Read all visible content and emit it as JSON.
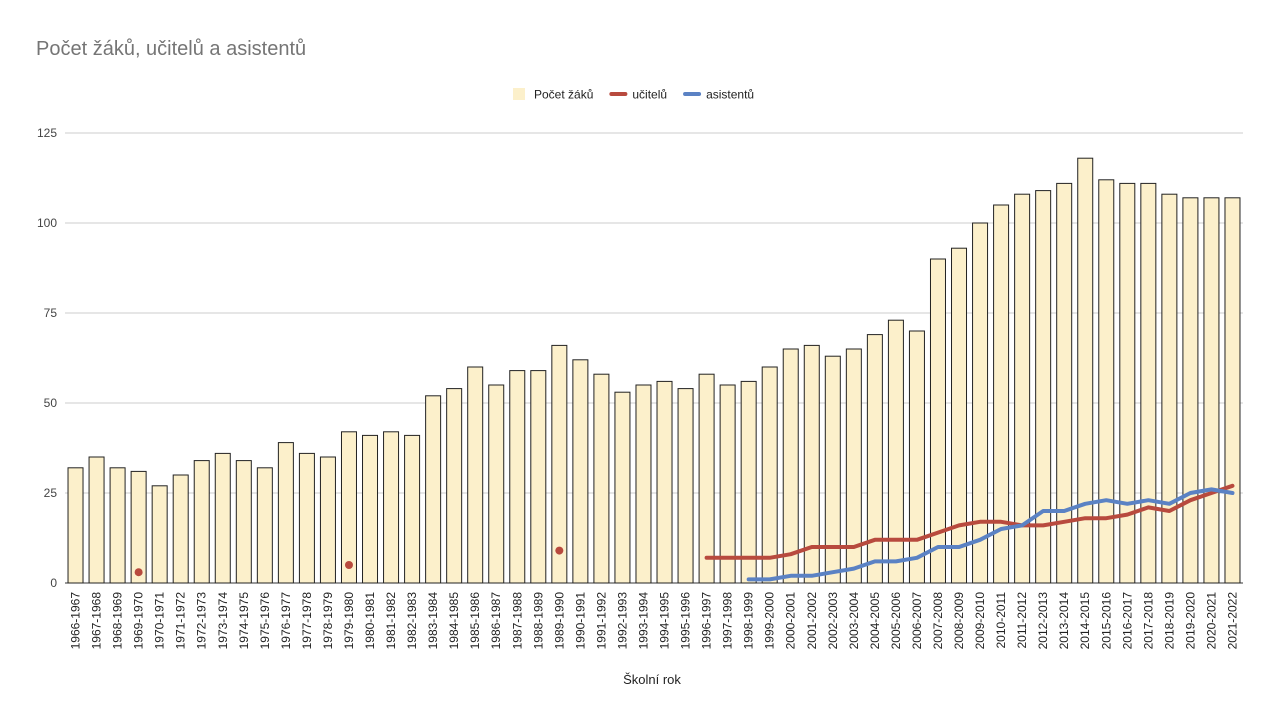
{
  "chart_data": {
    "type": "bar",
    "title": "Počet žáků, učitelů a asistentů",
    "xlabel": "Školní rok",
    "ylabel": "",
    "ylim": [
      0,
      125
    ],
    "yticks": [
      0,
      25,
      50,
      75,
      100,
      125
    ],
    "grid": true,
    "legend_position": "top",
    "categories": [
      "1966-1967",
      "1967-1968",
      "1968-1969",
      "1969-1970",
      "1970-1971",
      "1971-1972",
      "1972-1973",
      "1973-1974",
      "1974-1975",
      "1975-1976",
      "1976-1977",
      "1977-1978",
      "1978-1979",
      "1979-1980",
      "1980-1981",
      "1981-1982",
      "1982-1983",
      "1983-1984",
      "1984-1985",
      "1985-1986",
      "1986-1987",
      "1987-1988",
      "1988-1989",
      "1989-1990",
      "1990-1991",
      "1991-1992",
      "1992-1993",
      "1993-1994",
      "1994-1995",
      "1995-1996",
      "1996-1997",
      "1997-1998",
      "1998-1999",
      "1999-2000",
      "2000-2001",
      "2001-2002",
      "2002-2003",
      "2003-2004",
      "2004-2005",
      "2005-2006",
      "2006-2007",
      "2007-2008",
      "2008-2009",
      "2009-2010",
      "2010-2011",
      "2011-2012",
      "2012-2013",
      "2013-2014",
      "2014-2015",
      "2015-2016",
      "2016-2017",
      "2017-2018",
      "2018-2019",
      "2019-2020",
      "2020-2021",
      "2021-2022"
    ],
    "series": [
      {
        "name": "Počet žáků",
        "type": "bar",
        "color": "#fcf0cb",
        "values": [
          32,
          35,
          32,
          31,
          27,
          30,
          34,
          36,
          34,
          32,
          39,
          36,
          35,
          42,
          41,
          42,
          41,
          52,
          54,
          60,
          55,
          59,
          59,
          66,
          62,
          58,
          53,
          55,
          56,
          54,
          58,
          55,
          56,
          60,
          65,
          66,
          63,
          65,
          69,
          73,
          70,
          90,
          93,
          100,
          105,
          108,
          109,
          111,
          118,
          112,
          111,
          111,
          108,
          107,
          107,
          107
        ]
      },
      {
        "name": "učitelů",
        "type": "line",
        "color": "#b84a3e",
        "values": [
          null,
          null,
          null,
          3,
          null,
          null,
          null,
          null,
          null,
          null,
          null,
          null,
          null,
          5,
          null,
          null,
          null,
          null,
          null,
          null,
          null,
          null,
          null,
          9,
          null,
          null,
          null,
          null,
          null,
          null,
          7,
          7,
          7,
          7,
          8,
          10,
          10,
          10,
          12,
          12,
          12,
          14,
          16,
          17,
          17,
          16,
          16,
          17,
          18,
          18,
          19,
          21,
          20,
          23,
          25,
          27
        ]
      },
      {
        "name": "asistentů",
        "type": "line",
        "color": "#5b82c4",
        "values": [
          null,
          null,
          null,
          null,
          null,
          null,
          null,
          null,
          null,
          null,
          null,
          null,
          null,
          null,
          null,
          null,
          null,
          null,
          null,
          null,
          null,
          null,
          null,
          null,
          null,
          null,
          null,
          null,
          null,
          null,
          null,
          null,
          1,
          1,
          2,
          2,
          3,
          4,
          6,
          6,
          7,
          10,
          10,
          12,
          15,
          16,
          20,
          20,
          22,
          23,
          22,
          23,
          22,
          25,
          26,
          25
        ]
      }
    ]
  }
}
